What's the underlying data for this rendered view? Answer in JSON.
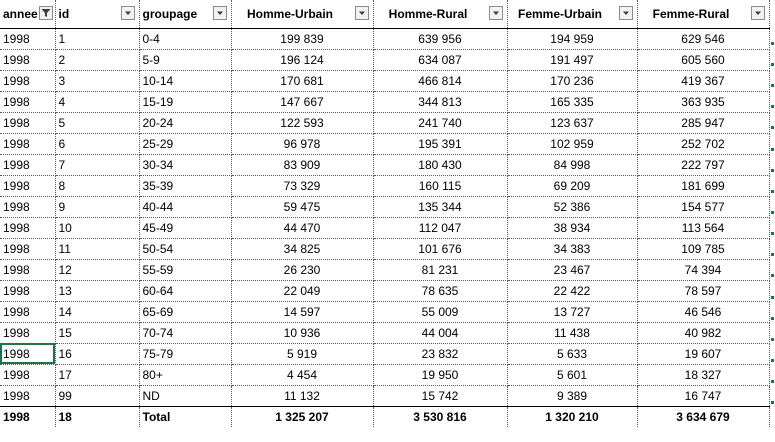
{
  "headers": {
    "annee": "annee",
    "id": "id",
    "groupage": "groupage",
    "homme_urbain": "Homme-Urbain",
    "homme_rural": "Homme-Rural",
    "femme_urbain": "Femme-Urbain",
    "femme_rural": "Femme-Rural"
  },
  "rows": [
    {
      "annee": "1998",
      "id": "1",
      "groupage": "0-4",
      "hu": "199 839",
      "hr": "639 956",
      "fu": "194 959",
      "fr": "629 546"
    },
    {
      "annee": "1998",
      "id": "2",
      "groupage": "5-9",
      "hu": "196 124",
      "hr": "634 087",
      "fu": "191 497",
      "fr": "605 560"
    },
    {
      "annee": "1998",
      "id": "3",
      "groupage": "10-14",
      "hu": "170 681",
      "hr": "466 814",
      "fu": "170 236",
      "fr": "419 367"
    },
    {
      "annee": "1998",
      "id": "4",
      "groupage": "15-19",
      "hu": "147 667",
      "hr": "344 813",
      "fu": "165 335",
      "fr": "363 935"
    },
    {
      "annee": "1998",
      "id": "5",
      "groupage": "20-24",
      "hu": "122 593",
      "hr": "241 740",
      "fu": "123 637",
      "fr": "285 947"
    },
    {
      "annee": "1998",
      "id": "6",
      "groupage": "25-29",
      "hu": "96 978",
      "hr": "195 391",
      "fu": "102 959",
      "fr": "252 702"
    },
    {
      "annee": "1998",
      "id": "7",
      "groupage": "30-34",
      "hu": "83 909",
      "hr": "180 430",
      "fu": "84 998",
      "fr": "222 797"
    },
    {
      "annee": "1998",
      "id": "8",
      "groupage": "35-39",
      "hu": "73 329",
      "hr": "160 115",
      "fu": "69 209",
      "fr": "181 699"
    },
    {
      "annee": "1998",
      "id": "9",
      "groupage": "40-44",
      "hu": "59 475",
      "hr": "135 344",
      "fu": "52 386",
      "fr": "154 577"
    },
    {
      "annee": "1998",
      "id": "10",
      "groupage": "45-49",
      "hu": "44 470",
      "hr": "112 047",
      "fu": "38 934",
      "fr": "113 564"
    },
    {
      "annee": "1998",
      "id": "11",
      "groupage": "50-54",
      "hu": "34 825",
      "hr": "101 676",
      "fu": "34 383",
      "fr": "109 785"
    },
    {
      "annee": "1998",
      "id": "12",
      "groupage": "55-59",
      "hu": "26 230",
      "hr": "81 231",
      "fu": "23 467",
      "fr": "74 394"
    },
    {
      "annee": "1998",
      "id": "13",
      "groupage": "60-64",
      "hu": "22 049",
      "hr": "78 635",
      "fu": "22 422",
      "fr": "78 597"
    },
    {
      "annee": "1998",
      "id": "14",
      "groupage": "65-69",
      "hu": "14 597",
      "hr": "55 009",
      "fu": "13 727",
      "fr": "46 546"
    },
    {
      "annee": "1998",
      "id": "15",
      "groupage": "70-74",
      "hu": "10 936",
      "hr": "44 004",
      "fu": "11 438",
      "fr": "40 982"
    },
    {
      "annee": "1998",
      "id": "16",
      "groupage": "75-79",
      "hu": "5 919",
      "hr": "23 832",
      "fu": "5 633",
      "fr": "19 607"
    },
    {
      "annee": "1998",
      "id": "17",
      "groupage": "80+",
      "hu": "4 454",
      "hr": "19 950",
      "fu": "5 601",
      "fr": "18 327"
    },
    {
      "annee": "1998",
      "id": "99",
      "groupage": "ND",
      "hu": "11 132",
      "hr": "15 742",
      "fu": "9 389",
      "fr": "16 747"
    }
  ],
  "total": {
    "annee": "1998",
    "id": "18",
    "groupage": "Total",
    "hu": "1 325 207",
    "hr": "3 530 816",
    "fu": "1 320 210",
    "fr": "3 634 679"
  },
  "colors": {
    "selection": "#217346",
    "grid": "#5a5a5a"
  },
  "icons": {
    "filter": "filter-dropdown-icon",
    "filter_active": "filter-active-icon"
  }
}
